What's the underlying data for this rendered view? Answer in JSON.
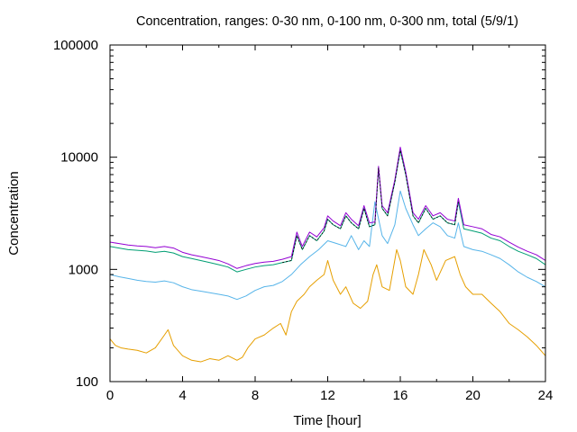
{
  "chart_data": {
    "type": "line",
    "title": "Concentration, ranges: 0-30 nm, 0-100 nm, 0-300 nm, total (5/9/1)",
    "xlabel": "Time [hour]",
    "ylabel": "Concentration",
    "xlim": [
      0,
      24
    ],
    "ylim": [
      100,
      100000
    ],
    "yscale": "log",
    "grid": false,
    "x_ticks": [
      0,
      4,
      8,
      12,
      16,
      20,
      24
    ],
    "x_tick_labels": [
      "0",
      "4",
      "8",
      "12",
      "16",
      "20",
      "24"
    ],
    "y_ticks": [
      100,
      1000,
      10000,
      100000
    ],
    "y_tick_labels": [
      "100",
      "1000",
      "10000",
      "100000"
    ],
    "series": [
      {
        "color": "#e69f00",
        "x": [
          0,
          0.3,
          0.6,
          1.0,
          1.5,
          2.0,
          2.5,
          3.0,
          3.2,
          3.5,
          4.0,
          4.5,
          5.0,
          5.5,
          6.0,
          6.5,
          7.0,
          7.3,
          7.6,
          8.0,
          8.5,
          9.0,
          9.4,
          9.7,
          10.0,
          10.3,
          10.7,
          11.0,
          11.4,
          11.8,
          12.0,
          12.3,
          12.7,
          13.0,
          13.4,
          13.8,
          14.2,
          14.5,
          14.7,
          15.0,
          15.4,
          15.8,
          16.0,
          16.3,
          16.7,
          17.0,
          17.3,
          17.7,
          18.0,
          18.5,
          19.0,
          19.3,
          19.6,
          20.0,
          20.5,
          21.0,
          21.5,
          22.0,
          22.5,
          23.0,
          23.5,
          24.0
        ],
        "values": [
          240,
          210,
          200,
          195,
          190,
          180,
          200,
          260,
          290,
          210,
          170,
          155,
          150,
          160,
          155,
          170,
          155,
          165,
          200,
          240,
          260,
          300,
          330,
          260,
          420,
          520,
          600,
          700,
          800,
          900,
          1200,
          800,
          600,
          700,
          500,
          450,
          520,
          900,
          1100,
          700,
          650,
          1500,
          1200,
          700,
          600,
          900,
          1500,
          1100,
          800,
          1200,
          1300,
          900,
          700,
          600,
          600,
          500,
          420,
          330,
          290,
          250,
          210,
          170
        ]
      },
      {
        "color": "#56b4e9",
        "x": [
          0,
          0.5,
          1.0,
          1.5,
          2.0,
          2.5,
          3.0,
          3.5,
          4.0,
          4.5,
          5.0,
          5.5,
          6.0,
          6.5,
          7.0,
          7.5,
          8.0,
          8.5,
          9.0,
          9.5,
          10.0,
          10.5,
          11.0,
          11.5,
          12.0,
          12.5,
          13.0,
          13.3,
          13.7,
          14.0,
          14.3,
          14.6,
          15.0,
          15.3,
          15.7,
          16.0,
          16.3,
          16.7,
          17.0,
          17.4,
          17.8,
          18.2,
          18.6,
          19.0,
          19.2,
          19.5,
          20.0,
          20.5,
          21.0,
          21.5,
          22.0,
          22.5,
          23.0,
          23.5,
          24.0
        ],
        "values": [
          900,
          860,
          830,
          800,
          780,
          770,
          790,
          760,
          700,
          660,
          640,
          620,
          600,
          580,
          540,
          580,
          650,
          700,
          720,
          780,
          900,
          1100,
          1300,
          1500,
          1800,
          1700,
          1600,
          2000,
          1500,
          1800,
          1600,
          4000,
          2000,
          1700,
          2500,
          5000,
          3500,
          2500,
          2000,
          2300,
          2600,
          2400,
          2000,
          1900,
          2600,
          1600,
          1500,
          1450,
          1350,
          1250,
          1100,
          950,
          850,
          780,
          700
        ]
      },
      {
        "color": "#009e73",
        "x": [
          0,
          0.5,
          1.0,
          1.5,
          2.0,
          2.5,
          3.0,
          3.5,
          4.0,
          4.5,
          5.0,
          5.5,
          6.0,
          6.5,
          7.0,
          7.5,
          8.0,
          8.5,
          9.0,
          9.5,
          10.0,
          10.3,
          10.6,
          11.0,
          11.4,
          11.8,
          12.0,
          12.3,
          12.7,
          13.0,
          13.3,
          13.7,
          14.0,
          14.3,
          14.6,
          14.8,
          15.0,
          15.3,
          15.7,
          16.0,
          16.3,
          16.7,
          17.0,
          17.4,
          17.8,
          18.2,
          18.6,
          19.0,
          19.2,
          19.5,
          20.0,
          20.5,
          21.0,
          21.5,
          22.0,
          22.5,
          23.0,
          23.5,
          24.0
        ],
        "values": [
          1600,
          1550,
          1500,
          1480,
          1460,
          1420,
          1450,
          1400,
          1300,
          1250,
          1200,
          1150,
          1100,
          1050,
          950,
          1000,
          1050,
          1080,
          1100,
          1150,
          1200,
          2000,
          1500,
          2000,
          1800,
          2200,
          2800,
          2500,
          2300,
          3000,
          2600,
          2300,
          3500,
          2400,
          2500,
          8000,
          3500,
          3000,
          6000,
          11500,
          7000,
          3000,
          2600,
          3500,
          2800,
          3000,
          2600,
          2500,
          4000,
          2300,
          2200,
          2100,
          1900,
          1800,
          1600,
          1450,
          1350,
          1250,
          1100
        ]
      },
      {
        "color": "#9400d3",
        "x": [
          0,
          0.5,
          1.0,
          1.5,
          2.0,
          2.5,
          3.0,
          3.5,
          4.0,
          4.5,
          5.0,
          5.5,
          6.0,
          6.5,
          7.0,
          7.5,
          8.0,
          8.5,
          9.0,
          9.5,
          10.0,
          10.3,
          10.6,
          11.0,
          11.4,
          11.8,
          12.0,
          12.3,
          12.7,
          13.0,
          13.3,
          13.7,
          14.0,
          14.3,
          14.6,
          14.8,
          15.0,
          15.3,
          15.7,
          16.0,
          16.3,
          16.7,
          17.0,
          17.4,
          17.8,
          18.2,
          18.6,
          19.0,
          19.2,
          19.5,
          20.0,
          20.5,
          21.0,
          21.5,
          22.0,
          22.5,
          23.0,
          23.5,
          24.0
        ],
        "values": [
          1750,
          1700,
          1650,
          1620,
          1600,
          1560,
          1600,
          1550,
          1420,
          1350,
          1300,
          1250,
          1200,
          1120,
          1020,
          1080,
          1130,
          1160,
          1180,
          1230,
          1300,
          2150,
          1600,
          2150,
          1950,
          2350,
          3000,
          2700,
          2450,
          3200,
          2800,
          2450,
          3700,
          2600,
          2650,
          8300,
          3700,
          3200,
          6300,
          12300,
          7400,
          3200,
          2800,
          3700,
          3000,
          3200,
          2800,
          2700,
          4300,
          2500,
          2400,
          2300,
          2050,
          1950,
          1750,
          1580,
          1450,
          1350,
          1200
        ]
      },
      {
        "color": "#000000",
        "dashed": true,
        "x": [
          9.5,
          10.0,
          10.3,
          10.6,
          11.0,
          11.4,
          11.8,
          12.0,
          12.3,
          12.7,
          13.0,
          13.3,
          13.7,
          14.0,
          14.3,
          14.6,
          14.8,
          15.0,
          15.3,
          15.7,
          16.0,
          16.3,
          16.7,
          17.0,
          17.4,
          17.8,
          18.2,
          18.6,
          19.0,
          19.2
        ],
        "values": [
          1150,
          1200,
          2000,
          1500,
          2000,
          1800,
          2200,
          2800,
          2500,
          2300,
          3000,
          2600,
          2300,
          3500,
          2400,
          2500,
          8000,
          3500,
          3000,
          6000,
          11500,
          7000,
          3000,
          2600,
          3500,
          2800,
          3000,
          2600,
          2500,
          4000
        ]
      }
    ]
  }
}
